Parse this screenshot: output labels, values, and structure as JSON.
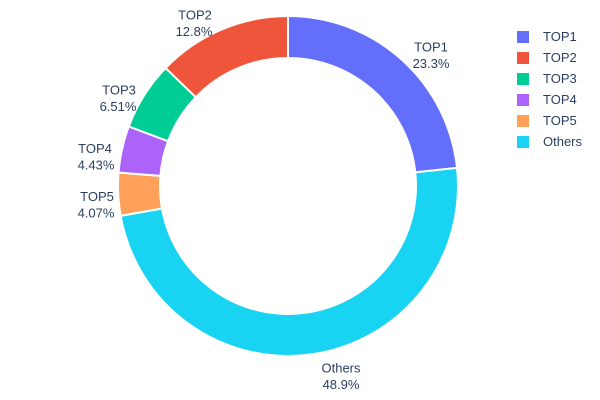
{
  "chart_data": {
    "type": "pie",
    "subtype": "donut",
    "hole_ratio": 0.75,
    "title": "",
    "background_color": "#ffffff",
    "text_color": "#2a3f5f",
    "separator_color": "#ffffff",
    "legend_position": "top-right",
    "categories": [
      "TOP1",
      "TOP2",
      "TOP3",
      "TOP4",
      "TOP5",
      "Others"
    ],
    "values": [
      23.3,
      12.8,
      6.51,
      4.43,
      4.07,
      48.9
    ],
    "clockwise_order_from_top": [
      "TOP1",
      "Others",
      "TOP5",
      "TOP4",
      "TOP3",
      "TOP2"
    ],
    "slices": [
      {
        "label": "TOP1",
        "value": 23.3,
        "percent_label": "23.3%",
        "color": "#636efa"
      },
      {
        "label": "TOP2",
        "value": 12.8,
        "percent_label": "12.8%",
        "color": "#ef553b"
      },
      {
        "label": "TOP3",
        "value": 6.51,
        "percent_label": "6.51%",
        "color": "#00cc96"
      },
      {
        "label": "TOP4",
        "value": 4.43,
        "percent_label": "4.43%",
        "color": "#ab63fa"
      },
      {
        "label": "TOP5",
        "value": 4.07,
        "percent_label": "4.07%",
        "color": "#ffa15a"
      },
      {
        "label": "Others",
        "value": 48.9,
        "percent_label": "48.9%",
        "color": "#19d3f3"
      }
    ]
  }
}
